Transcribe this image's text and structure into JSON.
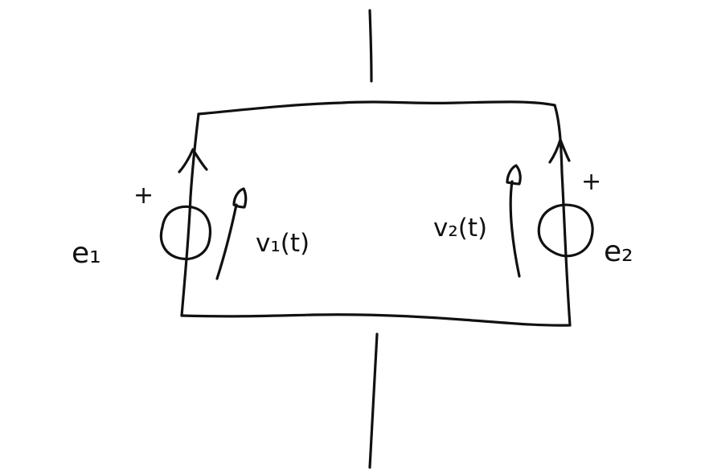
{
  "diagram": {
    "labels": {
      "source_left": "e₁",
      "source_right": "e₂",
      "voltage_left": "v₁(t)",
      "voltage_right": "v₂(t)",
      "plus_left": "+",
      "plus_right": "+"
    },
    "style": {
      "ink_color": "#111111",
      "background_color": "#ffffff"
    }
  }
}
